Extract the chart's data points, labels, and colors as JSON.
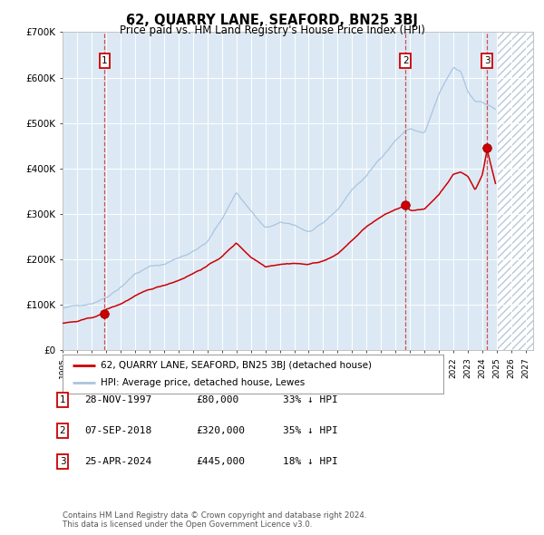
{
  "title": "62, QUARRY LANE, SEAFORD, BN25 3BJ",
  "subtitle": "Price paid vs. HM Land Registry's House Price Index (HPI)",
  "bg_color": "#dce9f5",
  "plot_bg_color": "#dce9f5",
  "hpi_color": "#aac4e0",
  "price_color": "#cc0000",
  "sale_marker_color": "#cc0000",
  "dashed_line_color": "#cc3333",
  "ylim": [
    0,
    700000
  ],
  "xlim_start": 1995.0,
  "xlim_end": 2027.5,
  "future_start": 2025.0,
  "sale_dates": [
    1997.91,
    2018.68,
    2024.32
  ],
  "sale_prices": [
    80000,
    320000,
    445000
  ],
  "sale_labels": [
    "1",
    "2",
    "3"
  ],
  "legend_label_red": "62, QUARRY LANE, SEAFORD, BN25 3BJ (detached house)",
  "legend_label_blue": "HPI: Average price, detached house, Lewes",
  "table_rows": [
    [
      "1",
      "28-NOV-1997",
      "£80,000",
      "33% ↓ HPI"
    ],
    [
      "2",
      "07-SEP-2018",
      "£320,000",
      "35% ↓ HPI"
    ],
    [
      "3",
      "25-APR-2024",
      "£445,000",
      "18% ↓ HPI"
    ]
  ],
  "footnote": "Contains HM Land Registry data © Crown copyright and database right 2024.\nThis data is licensed under the Open Government Licence v3.0.",
  "ytick_labels": [
    "£0",
    "£100K",
    "£200K",
    "£300K",
    "£400K",
    "£500K",
    "£600K",
    "£700K"
  ],
  "ytick_values": [
    0,
    100000,
    200000,
    300000,
    400000,
    500000,
    600000,
    700000
  ]
}
